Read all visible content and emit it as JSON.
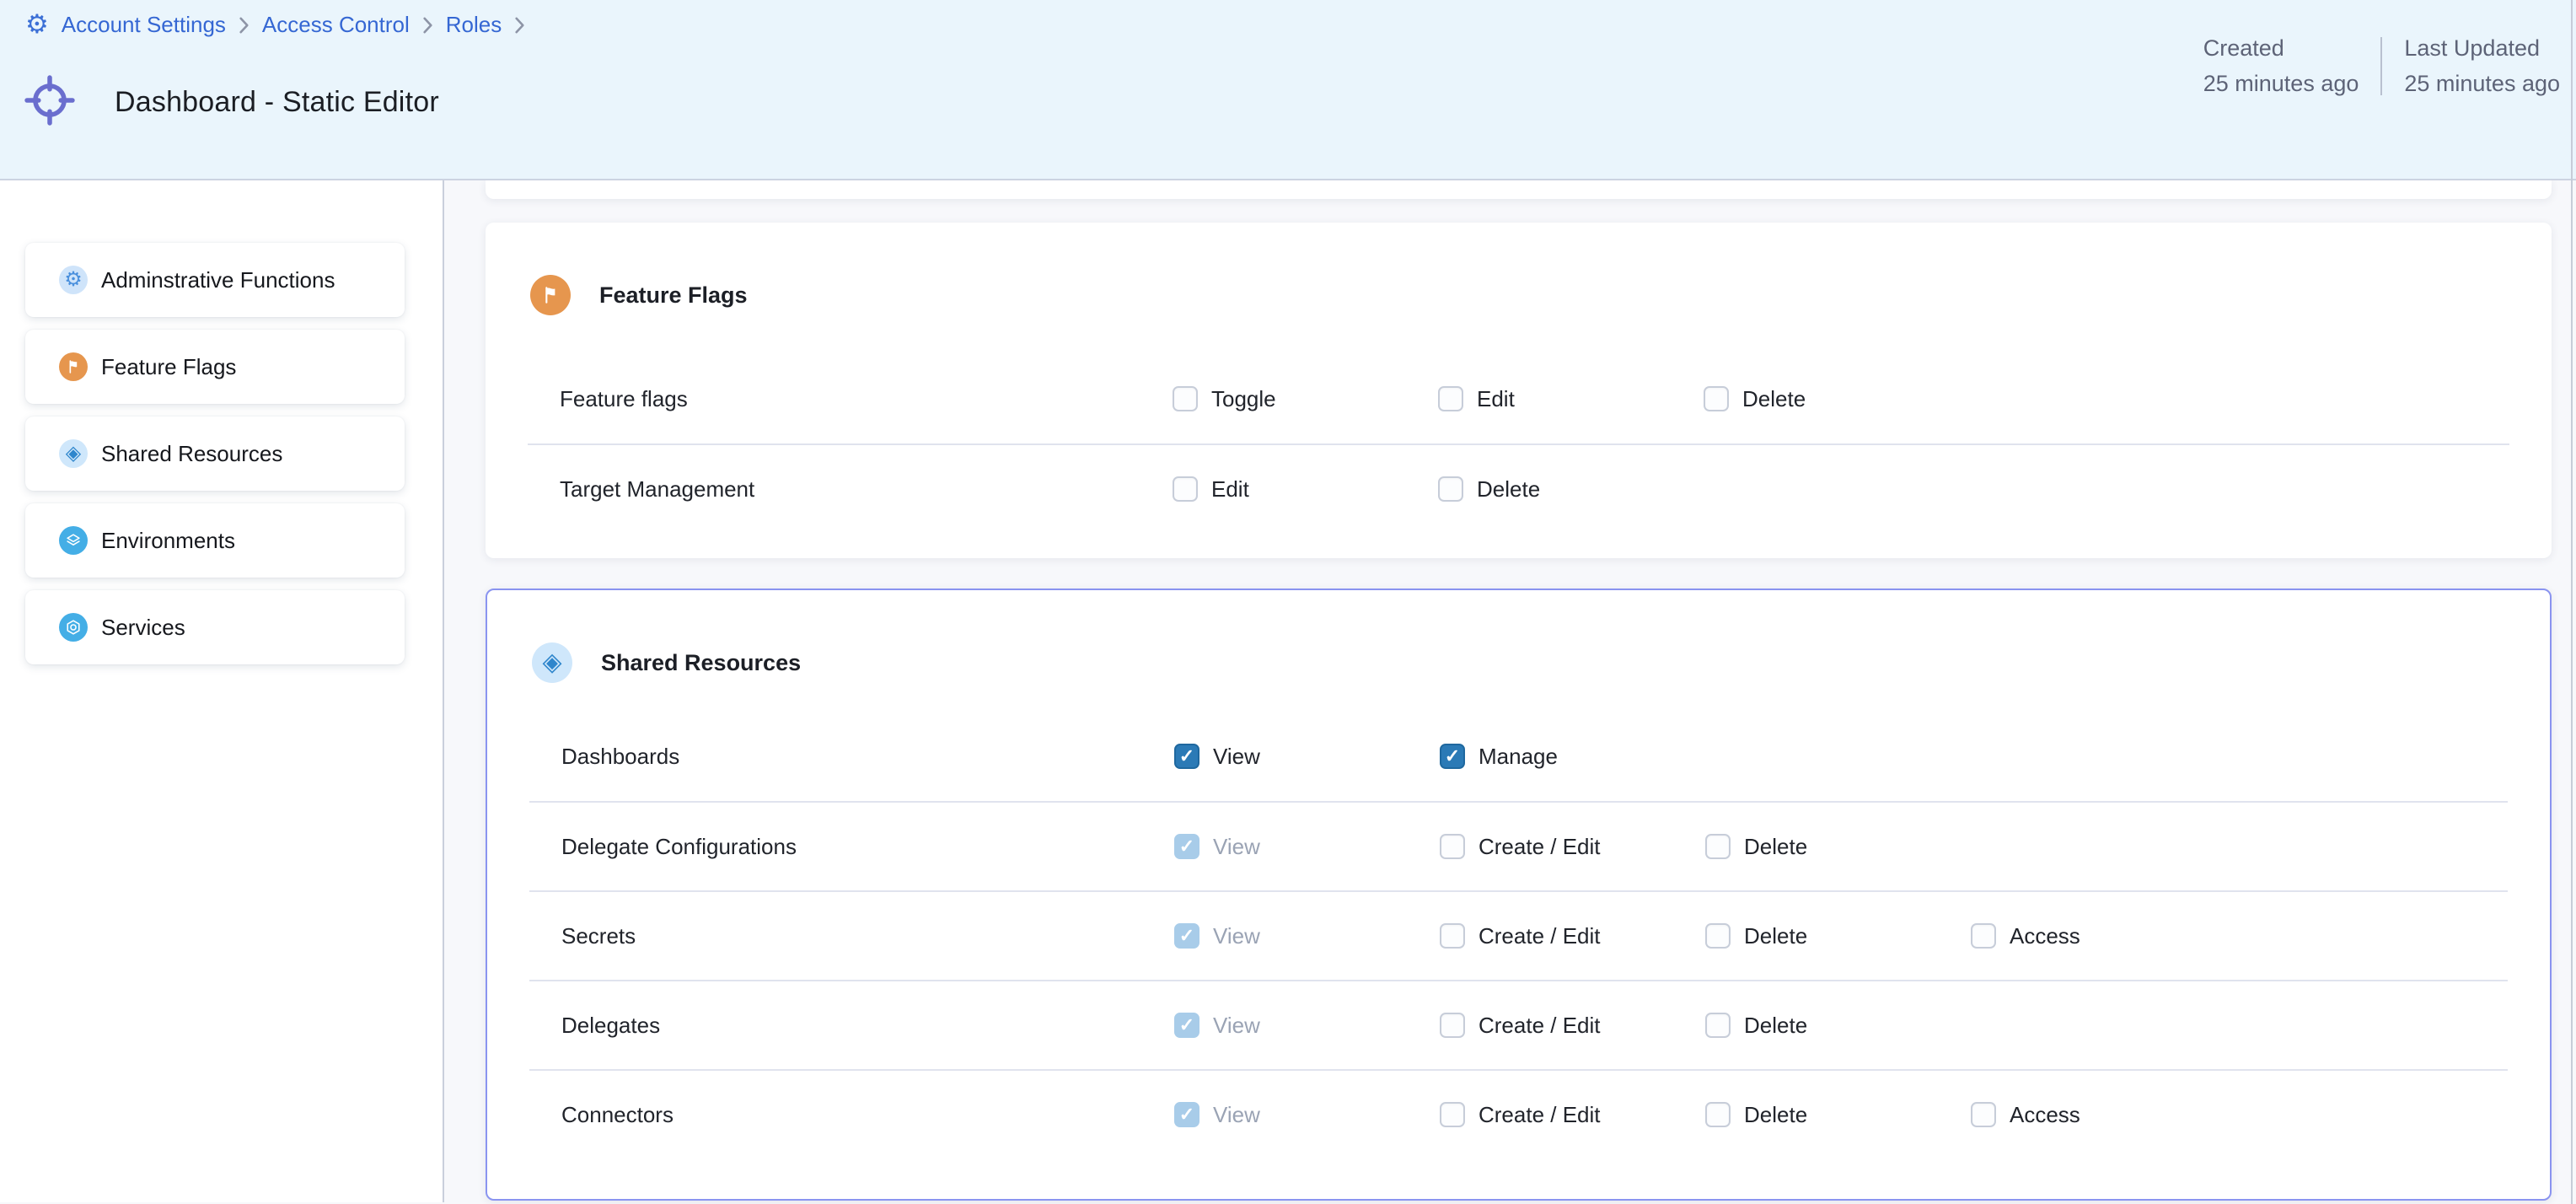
{
  "breadcrumb": {
    "items": [
      "Account Settings",
      "Access Control",
      "Roles"
    ],
    "trailing_separator": true
  },
  "header": {
    "title": "Dashboard - Static Editor",
    "created_label": "Created",
    "created_value": "25 minutes ago",
    "updated_label": "Last Updated",
    "updated_value": "25 minutes ago"
  },
  "sidebar": {
    "items": [
      {
        "label": "Adminstrative Functions",
        "icon": "gear-icon",
        "circle": "#cfe4fa",
        "icon_color": "#4a90dd"
      },
      {
        "label": "Feature Flags",
        "icon": "flag-icon",
        "circle": "#e6964e",
        "icon_color": "#ffffff"
      },
      {
        "label": "Shared Resources",
        "icon": "cube-icon",
        "circle": "#cfe7fb",
        "icon_color": "#2f86cc"
      },
      {
        "label": "Environments",
        "icon": "layers-icon",
        "circle": "#44aee6",
        "icon_color": "#ffffff"
      },
      {
        "label": "Services",
        "icon": "hexagon-icon",
        "circle": "#44aee6",
        "icon_color": "#ffffff"
      }
    ]
  },
  "main": {
    "sections": [
      {
        "title": "Feature Flags",
        "icon": "flag-icon",
        "circle": "#e6964e",
        "icon_color": "#ffffff",
        "selected": false,
        "rows": [
          {
            "label": "Feature flags",
            "perms": [
              {
                "label": "Toggle",
                "checked": false,
                "disabled": false
              },
              {
                "label": "Edit",
                "checked": false,
                "disabled": false
              },
              {
                "label": "Delete",
                "checked": false,
                "disabled": false
              }
            ]
          },
          {
            "label": "Target Management",
            "perms": [
              {
                "label": "Edit",
                "checked": false,
                "disabled": false
              },
              {
                "label": "Delete",
                "checked": false,
                "disabled": false
              }
            ]
          }
        ]
      },
      {
        "title": "Shared Resources",
        "icon": "cube-icon",
        "circle": "#cfe7fb",
        "icon_color": "#2f86cc",
        "selected": true,
        "rows": [
          {
            "label": "Dashboards",
            "perms": [
              {
                "label": "View",
                "checked": true,
                "disabled": false
              },
              {
                "label": "Manage",
                "checked": true,
                "disabled": false
              }
            ]
          },
          {
            "label": "Delegate Configurations",
            "perms": [
              {
                "label": "View",
                "checked": true,
                "disabled": true
              },
              {
                "label": "Create / Edit",
                "checked": false,
                "disabled": false
              },
              {
                "label": "Delete",
                "checked": false,
                "disabled": false
              }
            ]
          },
          {
            "label": "Secrets",
            "perms": [
              {
                "label": "View",
                "checked": true,
                "disabled": true
              },
              {
                "label": "Create / Edit",
                "checked": false,
                "disabled": false
              },
              {
                "label": "Delete",
                "checked": false,
                "disabled": false
              },
              {
                "label": "Access",
                "checked": false,
                "disabled": false
              }
            ]
          },
          {
            "label": "Delegates",
            "perms": [
              {
                "label": "View",
                "checked": true,
                "disabled": true
              },
              {
                "label": "Create / Edit",
                "checked": false,
                "disabled": false
              },
              {
                "label": "Delete",
                "checked": false,
                "disabled": false
              }
            ]
          },
          {
            "label": "Connectors",
            "perms": [
              {
                "label": "View",
                "checked": true,
                "disabled": true
              },
              {
                "label": "Create / Edit",
                "checked": false,
                "disabled": false
              },
              {
                "label": "Delete",
                "checked": false,
                "disabled": false
              },
              {
                "label": "Access",
                "checked": false,
                "disabled": false
              }
            ]
          }
        ]
      }
    ]
  },
  "colors": {
    "header_bg": "#eaf5fc",
    "link": "#3567d3",
    "title_icon": "#6a6ece",
    "checkbox_checked": "#2b7ab6",
    "checkbox_checked_border": "#1f689f",
    "checkbox_disabled": "#a8cce9",
    "selected_card_border": "#8a94f0",
    "page_bg": "#f7f8fb"
  }
}
